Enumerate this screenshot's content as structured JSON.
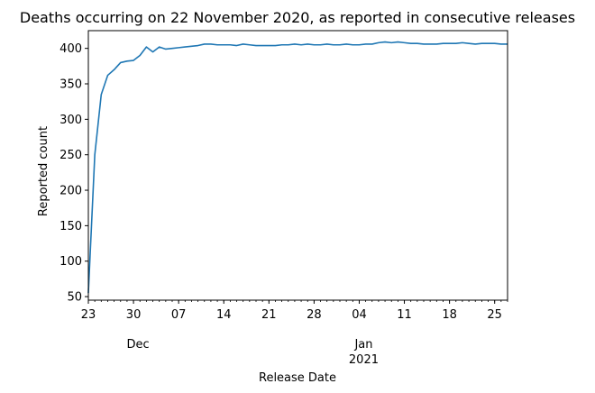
{
  "chart_data": {
    "type": "line",
    "title": "Deaths occurring on 22 November 2020, as reported in consecutive releases",
    "xlabel": "Release Date",
    "ylabel": "Reported count",
    "xlim": [
      "2020-11-23",
      "2021-01-27"
    ],
    "ylim": [
      45,
      425
    ],
    "grid": false,
    "legend": "none",
    "line_color": "#1f77b4",
    "x_major_ticks": [
      {
        "date": "2020-11-23",
        "label": "23"
      },
      {
        "date": "2020-11-30",
        "label": "30"
      },
      {
        "date": "2020-12-07",
        "label": "07"
      },
      {
        "date": "2020-12-14",
        "label": "14"
      },
      {
        "date": "2020-12-21",
        "label": "21"
      },
      {
        "date": "2020-12-28",
        "label": "28"
      },
      {
        "date": "2021-01-04",
        "label": "04"
      },
      {
        "date": "2021-01-11",
        "label": "11"
      },
      {
        "date": "2021-01-18",
        "label": "18"
      },
      {
        "date": "2021-01-25",
        "label": "25"
      }
    ],
    "x_secondary_labels": [
      {
        "date": "2020-11-30",
        "text": "Dec"
      },
      {
        "date": "2021-01-04",
        "text": "Jan"
      },
      {
        "date": "2021-01-04",
        "text": "2021"
      }
    ],
    "y_ticks": [
      50,
      100,
      150,
      200,
      250,
      300,
      350,
      400
    ],
    "series": [
      {
        "points": [
          [
            "2020-11-23",
            55
          ],
          [
            "2020-11-24",
            250
          ],
          [
            "2020-11-25",
            335
          ],
          [
            "2020-11-26",
            362
          ],
          [
            "2020-11-27",
            370
          ],
          [
            "2020-11-28",
            380
          ],
          [
            "2020-11-29",
            382
          ],
          [
            "2020-11-30",
            383
          ],
          [
            "2020-12-01",
            390
          ],
          [
            "2020-12-02",
            402
          ],
          [
            "2020-12-03",
            395
          ],
          [
            "2020-12-04",
            402
          ],
          [
            "2020-12-05",
            399
          ],
          [
            "2020-12-06",
            400
          ],
          [
            "2020-12-07",
            401
          ],
          [
            "2020-12-08",
            402
          ],
          [
            "2020-12-09",
            403
          ],
          [
            "2020-12-10",
            404
          ],
          [
            "2020-12-11",
            406
          ],
          [
            "2020-12-12",
            406
          ],
          [
            "2020-12-13",
            405
          ],
          [
            "2020-12-14",
            405
          ],
          [
            "2020-12-15",
            405
          ],
          [
            "2020-12-16",
            404
          ],
          [
            "2020-12-17",
            406
          ],
          [
            "2020-12-18",
            405
          ],
          [
            "2020-12-19",
            404
          ],
          [
            "2020-12-20",
            404
          ],
          [
            "2020-12-21",
            404
          ],
          [
            "2020-12-22",
            404
          ],
          [
            "2020-12-23",
            405
          ],
          [
            "2020-12-24",
            405
          ],
          [
            "2020-12-25",
            406
          ],
          [
            "2020-12-26",
            405
          ],
          [
            "2020-12-27",
            406
          ],
          [
            "2020-12-28",
            405
          ],
          [
            "2020-12-29",
            405
          ],
          [
            "2020-12-30",
            406
          ],
          [
            "2020-12-31",
            405
          ],
          [
            "2021-01-01",
            405
          ],
          [
            "2021-01-02",
            406
          ],
          [
            "2021-01-03",
            405
          ],
          [
            "2021-01-04",
            405
          ],
          [
            "2021-01-05",
            406
          ],
          [
            "2021-01-06",
            406
          ],
          [
            "2021-01-07",
            408
          ],
          [
            "2021-01-08",
            409
          ],
          [
            "2021-01-09",
            408
          ],
          [
            "2021-01-10",
            409
          ],
          [
            "2021-01-11",
            408
          ],
          [
            "2021-01-12",
            407
          ],
          [
            "2021-01-13",
            407
          ],
          [
            "2021-01-14",
            406
          ],
          [
            "2021-01-15",
            406
          ],
          [
            "2021-01-16",
            406
          ],
          [
            "2021-01-17",
            407
          ],
          [
            "2021-01-18",
            407
          ],
          [
            "2021-01-19",
            407
          ],
          [
            "2021-01-20",
            408
          ],
          [
            "2021-01-21",
            407
          ],
          [
            "2021-01-22",
            406
          ],
          [
            "2021-01-23",
            407
          ],
          [
            "2021-01-24",
            407
          ],
          [
            "2021-01-25",
            407
          ],
          [
            "2021-01-26",
            406
          ],
          [
            "2021-01-27",
            406
          ]
        ]
      }
    ]
  }
}
